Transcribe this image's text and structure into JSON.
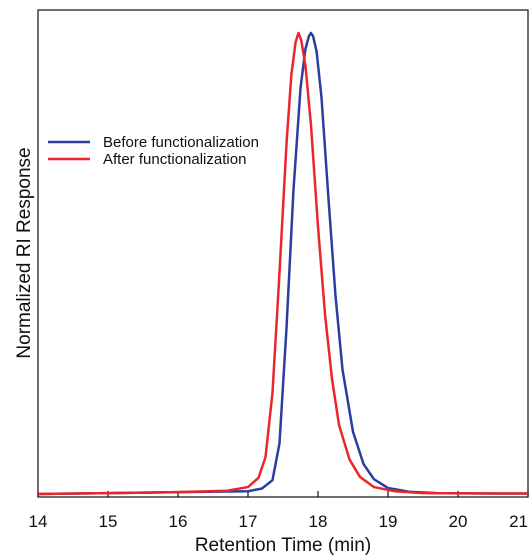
{
  "chart_data": {
    "type": "line",
    "xlabel": "Retention Time (min)",
    "ylabel": "Normalized RI Response",
    "xlim": [
      14,
      21
    ],
    "ylim": [
      0,
      1.0
    ],
    "grid": false,
    "legend_placement": "upper-left",
    "x_ticks": [
      "14",
      "15",
      "16",
      "17",
      "18",
      "19",
      "20",
      "21"
    ],
    "series": [
      {
        "name": "Before functionalization",
        "color": "#2b3ea0",
        "x": [
          14.0,
          15.0,
          16.0,
          17.0,
          17.2,
          17.35,
          17.45,
          17.55,
          17.65,
          17.75,
          17.82,
          17.87,
          17.9,
          17.93,
          17.98,
          18.05,
          18.15,
          18.25,
          18.35,
          18.5,
          18.65,
          18.8,
          19.0,
          19.3,
          19.7,
          20.5,
          21.0
        ],
        "y": [
          0.0,
          0.002,
          0.004,
          0.006,
          0.012,
          0.03,
          0.11,
          0.36,
          0.66,
          0.88,
          0.965,
          0.993,
          1.0,
          0.993,
          0.96,
          0.86,
          0.64,
          0.43,
          0.27,
          0.135,
          0.065,
          0.032,
          0.013,
          0.005,
          0.002,
          0.001,
          0.001
        ]
      },
      {
        "name": "After functionalization",
        "color": "#e8262c",
        "x": [
          14.0,
          15.0,
          16.0,
          16.7,
          17.0,
          17.15,
          17.25,
          17.35,
          17.45,
          17.55,
          17.62,
          17.68,
          17.72,
          17.76,
          17.82,
          17.9,
          18.0,
          18.1,
          18.2,
          18.3,
          18.45,
          18.6,
          18.8,
          19.1,
          19.5,
          20.5,
          21.0
        ],
        "y": [
          0.0,
          0.002,
          0.004,
          0.007,
          0.015,
          0.035,
          0.08,
          0.22,
          0.48,
          0.76,
          0.91,
          0.98,
          1.0,
          0.985,
          0.93,
          0.8,
          0.58,
          0.39,
          0.25,
          0.15,
          0.075,
          0.037,
          0.015,
          0.006,
          0.002,
          0.001,
          0.001
        ]
      }
    ]
  }
}
